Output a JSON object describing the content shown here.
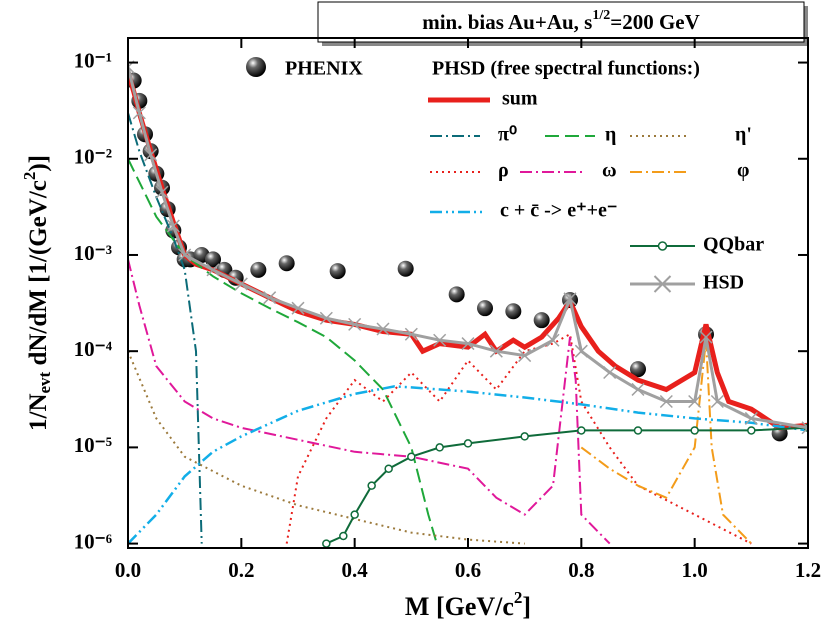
{
  "chart_data": {
    "type": "line",
    "title": [
      "min. bias Au+Au,  s",
      "1/2",
      "=200 GeV"
    ],
    "y_label": [
      "1/N",
      "evt",
      " dN/dM  [1/(GeV/c",
      "2",
      ")]"
    ],
    "x_label": [
      "M  [GeV/c",
      "2",
      "]"
    ],
    "legend_header": "PHSD (free spectral functions:)",
    "log_y": true,
    "xlim": [
      0,
      1.2
    ],
    "ylim": [
      9e-07,
      0.18
    ],
    "xticks": [
      {
        "value": 0,
        "label": "0.0"
      },
      0.2,
      0.4,
      0.6,
      0.8,
      {
        "value": 1,
        "label": "1.0"
      },
      1.2
    ],
    "yticks": [
      {
        "value": 1e-06,
        "label": "10⁻⁶"
      },
      {
        "value": 1e-05,
        "label": "10⁻⁵"
      },
      {
        "value": 0.0001,
        "label": "10⁻⁴"
      },
      {
        "value": 0.001,
        "label": "10⁻³"
      },
      {
        "value": 0.01,
        "label": "10⁻²"
      },
      {
        "value": 0.1,
        "label": "10⁻¹"
      }
    ],
    "series": [
      {
        "name": "PHENIX",
        "type": "scatter",
        "color": "#000000",
        "x": [
          0.01,
          0.02,
          0.03,
          0.04,
          0.05,
          0.06,
          0.07,
          0.08,
          0.09,
          0.1,
          0.11,
          0.13,
          0.15,
          0.17,
          0.19,
          0.23,
          0.28,
          0.37,
          0.49,
          0.58,
          0.63,
          0.68,
          0.73,
          0.78,
          0.9,
          1.02,
          1.15
        ],
        "values": [
          0.065,
          0.04,
          0.018,
          0.012,
          0.007,
          0.005,
          0.003,
          0.0018,
          0.0012,
          0.0009,
          0.0009,
          0.001,
          0.0009,
          0.0007,
          0.00058,
          0.0007,
          0.00082,
          0.00068,
          0.00072,
          0.00039,
          0.00028,
          0.00026,
          0.00021,
          0.00034,
          6.5e-05,
          0.00015,
          1.4e-05
        ]
      },
      {
        "name": "sum",
        "color": "#e8201c",
        "line_style": "solid",
        "width": 5,
        "x": [
          0,
          0.01,
          0.02,
          0.04,
          0.06,
          0.08,
          0.1,
          0.12,
          0.15,
          0.2,
          0.25,
          0.3,
          0.35,
          0.4,
          0.45,
          0.5,
          0.52,
          0.55,
          0.6,
          0.63,
          0.65,
          0.68,
          0.7,
          0.73,
          0.76,
          0.78,
          0.8,
          0.83,
          0.86,
          0.9,
          0.95,
          1.0,
          1.02,
          1.04,
          1.06,
          1.1,
          1.15,
          1.2
        ],
        "values": [
          0.08,
          0.05,
          0.03,
          0.012,
          0.005,
          0.0022,
          0.001,
          0.0008,
          0.0007,
          0.0005,
          0.00036,
          0.00026,
          0.00021,
          0.00019,
          0.00016,
          0.00015,
          0.0001,
          0.00012,
          0.00011,
          0.00015,
          0.0001,
          0.00013,
          0.00011,
          0.00014,
          0.00022,
          0.00033,
          0.00018,
          0.0001,
          7e-05,
          5e-05,
          4e-05,
          6e-05,
          0.00019,
          6e-05,
          3e-05,
          2.5e-05,
          1.6e-05,
          1.7e-05
        ]
      },
      {
        "name": "π⁰",
        "color": "#0b6b78",
        "line_style": "dash-dot",
        "width": 2,
        "x": [
          0,
          0.02,
          0.05,
          0.08,
          0.1,
          0.12,
          0.13
        ],
        "values": [
          0.03,
          0.012,
          0.004,
          0.0015,
          0.0007,
          0.0001,
          1e-06
        ]
      },
      {
        "name": "η",
        "color": "#1fa83a",
        "line_style": "dash",
        "width": 2,
        "x": [
          0,
          0.05,
          0.1,
          0.15,
          0.2,
          0.25,
          0.3,
          0.35,
          0.4,
          0.45,
          0.5,
          0.53,
          0.545
        ],
        "values": [
          0.01,
          0.0025,
          0.001,
          0.0006,
          0.0004,
          0.00028,
          0.0002,
          0.00014,
          8e-05,
          4e-05,
          1e-05,
          2e-06,
          1e-06
        ]
      },
      {
        "name": "η'",
        "color": "#9c7a3c",
        "line_style": "dot",
        "width": 2,
        "x": [
          0,
          0.05,
          0.1,
          0.2,
          0.3,
          0.4,
          0.5,
          0.6,
          0.7
        ],
        "values": [
          0.0001,
          2e-05,
          8e-06,
          4e-06,
          2.5e-06,
          1.8e-06,
          1.3e-06,
          1.1e-06,
          1e-06
        ]
      },
      {
        "name": "ρ",
        "color": "#e8201c",
        "line_style": "dot",
        "width": 2,
        "x": [
          0.28,
          0.3,
          0.35,
          0.4,
          0.45,
          0.5,
          0.55,
          0.6,
          0.65,
          0.7,
          0.75,
          0.78,
          0.8,
          0.85,
          0.9,
          1.0,
          1.1
        ],
        "values": [
          1e-06,
          5e-06,
          2e-05,
          5e-05,
          3e-05,
          6e-05,
          3e-05,
          8e-05,
          4e-05,
          0.0001,
          0.00012,
          0.00015,
          3e-05,
          1e-05,
          4e-06,
          2e-06,
          1e-06
        ]
      },
      {
        "name": "ω",
        "color": "#e0189a",
        "line_style": "dash-dot",
        "width": 2,
        "x": [
          0,
          0.02,
          0.05,
          0.1,
          0.15,
          0.2,
          0.3,
          0.4,
          0.5,
          0.6,
          0.65,
          0.7,
          0.75,
          0.78,
          0.79,
          0.8,
          0.85
        ],
        "values": [
          0.0009,
          0.0003,
          7e-05,
          3e-05,
          2e-05,
          1.6e-05,
          1.2e-05,
          9e-06,
          8e-06,
          6e-06,
          3e-06,
          2e-06,
          4e-06,
          0.00014,
          5e-05,
          2e-06,
          1e-06
        ]
      },
      {
        "name": "φ",
        "color": "#f39c1a",
        "line_style": "dash-dot",
        "width": 2,
        "x": [
          0.8,
          0.85,
          0.9,
          0.95,
          1.0,
          1.02,
          1.03,
          1.05,
          1.1
        ],
        "values": [
          1e-05,
          6e-06,
          4e-06,
          3e-06,
          1e-05,
          0.00013,
          1e-05,
          2e-06,
          1e-06
        ]
      },
      {
        "name": "c + c̄ -> e⁺+e⁻",
        "color": "#12aee8",
        "line_style": "dash-dot-dot",
        "width": 2.5,
        "x": [
          0,
          0.05,
          0.1,
          0.15,
          0.2,
          0.3,
          0.4,
          0.47,
          0.5,
          0.6,
          0.7,
          0.8,
          0.9,
          1.0,
          1.1,
          1.2
        ],
        "values": [
          1e-06,
          2e-06,
          5e-06,
          9e-06,
          1.3e-05,
          2.4e-05,
          3.6e-05,
          4.3e-05,
          4.2e-05,
          3.8e-05,
          3.3e-05,
          2.8e-05,
          2.3e-05,
          2e-05,
          1.8e-05,
          1.5e-05
        ]
      },
      {
        "name": "QQbar",
        "color": "#0f6b3a",
        "line_style": "solid",
        "width": 2,
        "marker": "circle",
        "x": [
          0.35,
          0.38,
          0.4,
          0.43,
          0.46,
          0.5,
          0.55,
          0.6,
          0.7,
          0.8,
          0.9,
          1.0,
          1.1,
          1.2
        ],
        "values": [
          1e-06,
          1.2e-06,
          2e-06,
          4e-06,
          6e-06,
          8e-06,
          1e-05,
          1.1e-05,
          1.3e-05,
          1.5e-05,
          1.5e-05,
          1.5e-05,
          1.5e-05,
          1.6e-05
        ]
      },
      {
        "name": "HSD",
        "color": "#a0a0a0",
        "line_style": "solid",
        "width": 3,
        "marker": "cross",
        "x": [
          0,
          0.02,
          0.04,
          0.06,
          0.08,
          0.1,
          0.15,
          0.2,
          0.25,
          0.3,
          0.35,
          0.4,
          0.45,
          0.5,
          0.55,
          0.6,
          0.65,
          0.7,
          0.75,
          0.78,
          0.8,
          0.85,
          0.9,
          0.95,
          1.0,
          1.02,
          1.04,
          1.1,
          1.2
        ],
        "values": [
          0.09,
          0.03,
          0.011,
          0.0045,
          0.002,
          0.001,
          0.0007,
          0.0005,
          0.00036,
          0.00028,
          0.00022,
          0.00019,
          0.00017,
          0.00015,
          0.00013,
          0.00012,
          0.0001,
          9e-05,
          0.00013,
          0.00035,
          0.0001,
          6e-05,
          4e-05,
          3e-05,
          3e-05,
          0.00014,
          3e-05,
          2e-05,
          1.6e-05
        ]
      }
    ]
  }
}
